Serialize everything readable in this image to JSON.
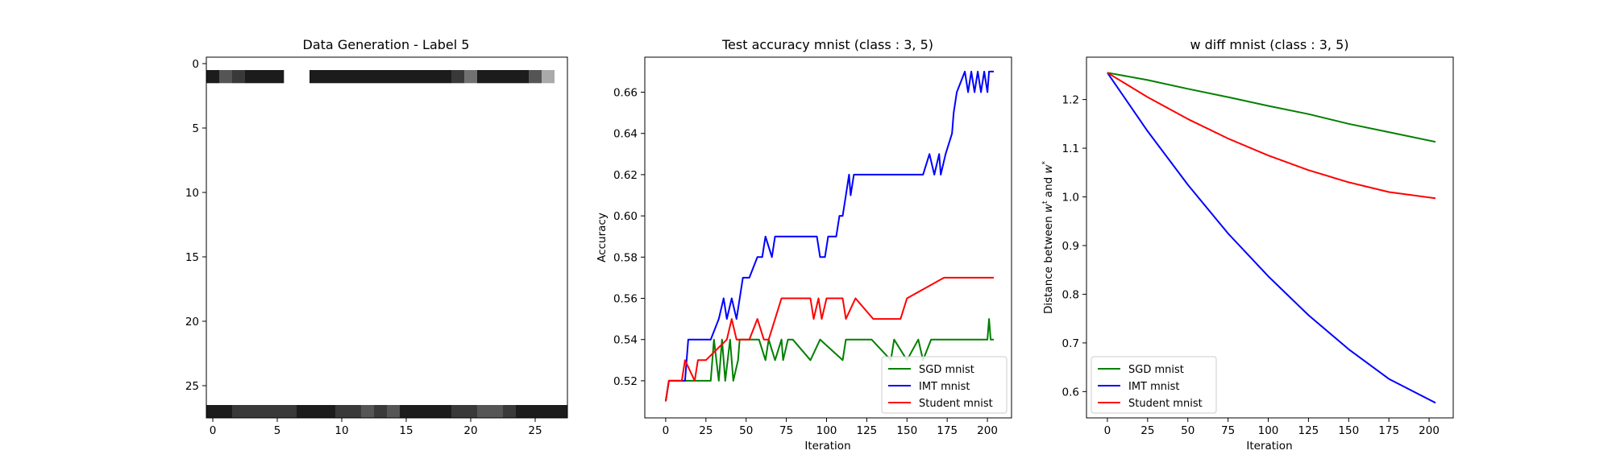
{
  "chart_data": [
    {
      "type": "heatmap",
      "title": "Data Generation - Label 5",
      "x_ticks": [
        0,
        5,
        10,
        15,
        20,
        25
      ],
      "y_ticks": [
        0,
        5,
        10,
        15,
        20,
        25
      ],
      "colormap": "gray",
      "grid": false,
      "rows": [
        "0000000000000000000000000000",
        "1321110011111111111241111369",
        "0000000000000000000000000000",
        "0000000000000000000000000000",
        "0000000000000000000000000000",
        "0000000000000000000000000000",
        "0000000000000000000000000000",
        "0000000000000000000000000000",
        "0000000000000000000000000000",
        "0000000000000000000000000000",
        "0000000000000000000000000000",
        "0000000000000000000000000000",
        "0000000000000000000000000000",
        "0000000000000000000000000000",
        "0000000000000000000000000000",
        "0000000000000000000000000000",
        "0000000000000000000000000000",
        "0000000000000000000000000000",
        "0000000000000000000000000000",
        "0000000000000000000000000000",
        "0000000000000000000000000000",
        "0000000000000000000000000000",
        "0000000000000000000000000000",
        "0000000000000000000000000000",
        "0000000000000000000000000000",
        "0000000000000000000000000000",
        "0000000000000000000000000000",
        "1122222111223231111223321111"
      ]
    },
    {
      "type": "line",
      "title": "Test accuracy mnist (class : 3, 5)",
      "xlabel": "Iteration",
      "ylabel": "Accuracy",
      "xlim": [
        -13,
        215
      ],
      "ylim": [
        0.502,
        0.677
      ],
      "x_ticks": [
        0,
        25,
        50,
        75,
        100,
        125,
        150,
        175,
        200
      ],
      "y_ticks": [
        0.52,
        0.54,
        0.56,
        0.58,
        0.6,
        0.62,
        0.64,
        0.66
      ],
      "legend_position": "lower-right",
      "series": [
        {
          "name": "SGD mnist",
          "color": "#008000",
          "x": [
            0,
            2,
            28,
            30,
            33,
            35,
            37,
            40,
            42,
            45,
            46,
            50,
            58,
            62,
            64,
            68,
            72,
            73,
            76,
            79,
            90,
            96,
            110,
            112,
            128,
            140,
            142,
            150,
            157,
            160,
            165,
            200,
            201,
            202,
            204
          ],
          "y": [
            0.51,
            0.52,
            0.52,
            0.54,
            0.52,
            0.54,
            0.52,
            0.54,
            0.52,
            0.53,
            0.54,
            0.54,
            0.54,
            0.53,
            0.54,
            0.53,
            0.54,
            0.53,
            0.54,
            0.54,
            0.53,
            0.54,
            0.53,
            0.54,
            0.54,
            0.53,
            0.54,
            0.53,
            0.54,
            0.53,
            0.54,
            0.54,
            0.55,
            0.54,
            0.54
          ]
        },
        {
          "name": "IMT mnist",
          "color": "#0000ff",
          "x": [
            0,
            2,
            12,
            14,
            28,
            33,
            36,
            38,
            41,
            44,
            48,
            52,
            57,
            60,
            62,
            66,
            68,
            94,
            96,
            99,
            101,
            106,
            108,
            110,
            112,
            114,
            115,
            117,
            130,
            160,
            164,
            167,
            170,
            171,
            174,
            178,
            179,
            181,
            186,
            188,
            190,
            192,
            194,
            196,
            198,
            200,
            201,
            202,
            204
          ],
          "y": [
            0.51,
            0.52,
            0.52,
            0.54,
            0.54,
            0.55,
            0.56,
            0.55,
            0.56,
            0.55,
            0.57,
            0.57,
            0.58,
            0.58,
            0.59,
            0.58,
            0.59,
            0.59,
            0.58,
            0.58,
            0.59,
            0.59,
            0.6,
            0.6,
            0.61,
            0.62,
            0.61,
            0.62,
            0.62,
            0.62,
            0.63,
            0.62,
            0.63,
            0.62,
            0.63,
            0.64,
            0.65,
            0.66,
            0.67,
            0.66,
            0.67,
            0.66,
            0.67,
            0.66,
            0.67,
            0.66,
            0.67,
            0.67,
            0.67
          ]
        },
        {
          "name": "Student mnist",
          "color": "#ff0000",
          "x": [
            0,
            2,
            10,
            12,
            18,
            20,
            25,
            38,
            41,
            44,
            48,
            52,
            57,
            61,
            64,
            72,
            90,
            92,
            95,
            97,
            100,
            110,
            112,
            118,
            129,
            146,
            150,
            173,
            204
          ],
          "y": [
            0.51,
            0.52,
            0.52,
            0.53,
            0.52,
            0.53,
            0.53,
            0.54,
            0.55,
            0.54,
            0.54,
            0.54,
            0.55,
            0.54,
            0.54,
            0.56,
            0.56,
            0.55,
            0.56,
            0.55,
            0.56,
            0.56,
            0.55,
            0.56,
            0.55,
            0.55,
            0.56,
            0.57,
            0.57
          ]
        }
      ]
    },
    {
      "type": "line",
      "title": "w diff mnist (class : 3, 5)",
      "xlabel": "Iteration",
      "ylabel": "Distance between $w^t$ and $w^*$",
      "xlim": [
        -13,
        215
      ],
      "ylim": [
        0.546,
        1.287
      ],
      "x_ticks": [
        0,
        25,
        50,
        75,
        100,
        125,
        150,
        175,
        200
      ],
      "y_ticks": [
        0.6,
        0.7,
        0.8,
        0.9,
        1.0,
        1.1,
        1.2
      ],
      "legend_position": "lower-left",
      "series": [
        {
          "name": "SGD mnist",
          "color": "#008000",
          "x": [
            0,
            25,
            50,
            75,
            100,
            125,
            150,
            175,
            204
          ],
          "y": [
            1.255,
            1.24,
            1.222,
            1.205,
            1.187,
            1.17,
            1.15,
            1.133,
            1.113
          ]
        },
        {
          "name": "IMT mnist",
          "color": "#0000ff",
          "x": [
            0,
            25,
            50,
            75,
            100,
            125,
            150,
            175,
            204
          ],
          "y": [
            1.255,
            1.135,
            1.025,
            0.925,
            0.837,
            0.757,
            0.687,
            0.626,
            0.577
          ]
        },
        {
          "name": "Student mnist",
          "color": "#ff0000",
          "x": [
            0,
            25,
            50,
            75,
            100,
            125,
            150,
            175,
            204
          ],
          "y": [
            1.255,
            1.205,
            1.16,
            1.12,
            1.085,
            1.055,
            1.03,
            1.01,
            0.997
          ]
        }
      ]
    }
  ]
}
